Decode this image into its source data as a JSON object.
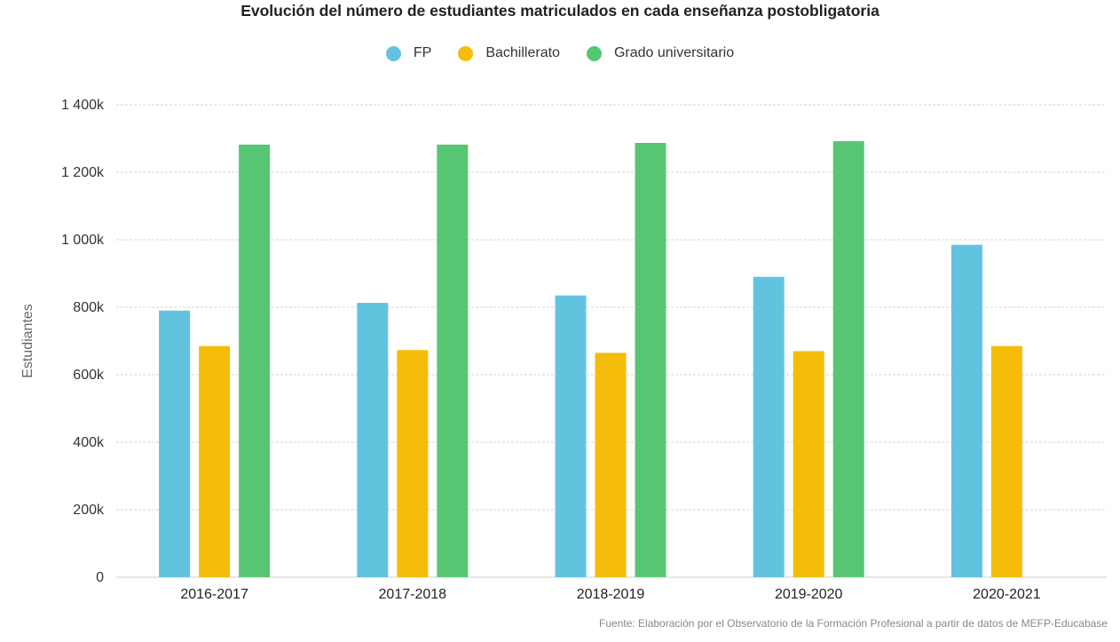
{
  "chart_data": {
    "type": "bar",
    "title": "Evolución del número de estudiantes matriculados en cada enseñanza postobligatoria",
    "xlabel": "",
    "ylabel": "Estudiantes",
    "categories": [
      "2016-2017",
      "2017-2018",
      "2018-2019",
      "2019-2020",
      "2020-2021"
    ],
    "series": [
      {
        "name": "FP",
        "color": "#62c3df",
        "values": [
          790000,
          813000,
          835000,
          890000,
          985000
        ]
      },
      {
        "name": "Bachillerato",
        "color": "#f5bd0a",
        "values": [
          685000,
          673000,
          665000,
          670000,
          685000
        ]
      },
      {
        "name": "Grado universitario",
        "color": "#57c673",
        "values": [
          1282000,
          1282000,
          1287000,
          1292000,
          null
        ]
      }
    ],
    "ylim": [
      0,
      1400000
    ],
    "yticks": [
      {
        "value": 0,
        "label": "0"
      },
      {
        "value": 200000,
        "label": "200k"
      },
      {
        "value": 400000,
        "label": "400k"
      },
      {
        "value": 600000,
        "label": "600k"
      },
      {
        "value": 800000,
        "label": "800k"
      },
      {
        "value": 1000000,
        "label": "1 000k"
      },
      {
        "value": 1200000,
        "label": "1 200k"
      },
      {
        "value": 1400000,
        "label": "1 400k"
      }
    ],
    "grid": true,
    "legend_position": "top-center",
    "source": "Fuente: Elaboración por el Observatorio de la Formación Profesional a partir de datos de MEFP-Educabase"
  }
}
